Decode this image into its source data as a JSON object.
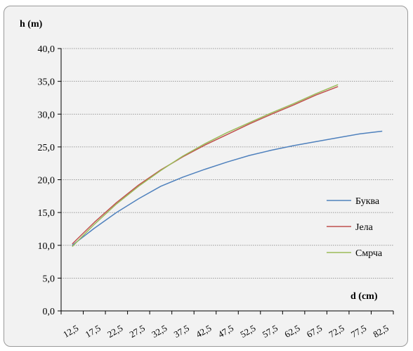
{
  "chart_data": {
    "type": "line",
    "ylabel": "h (m)",
    "xlabel": "d (cm)",
    "ylim": [
      0,
      40
    ],
    "yticks": [
      "0,0",
      "5,0",
      "10,0",
      "15,0",
      "20,0",
      "25,0",
      "30,0",
      "35,0",
      "40,0"
    ],
    "x_labels": [
      "12,5",
      "17,5",
      "22,5",
      "27,5",
      "32,5",
      "37,5",
      "42,5",
      "47,5",
      "52,5",
      "57,5",
      "62,5",
      "67,5",
      "72,5",
      "77,5",
      "82,5"
    ],
    "grid": true,
    "legend_position": "right",
    "series": [
      {
        "name": "Буква",
        "color": "#4f81bd",
        "values": [
          10.0,
          12.6,
          15.0,
          17.1,
          19.0,
          20.4,
          21.6,
          22.7,
          23.7,
          24.5,
          25.2,
          25.8,
          26.4,
          27.0,
          27.4
        ]
      },
      {
        "name": "Јела",
        "color": "#c0504d",
        "values": [
          10.2,
          13.5,
          16.5,
          19.2,
          21.5,
          23.5,
          25.3,
          26.9,
          28.5,
          30.0,
          31.4,
          32.9,
          34.2
        ]
      },
      {
        "name": "Смрча",
        "color": "#9bbb59",
        "values": [
          9.8,
          13.2,
          16.3,
          19.0,
          21.4,
          23.6,
          25.5,
          27.2,
          28.7,
          30.2,
          31.6,
          33.1,
          34.5
        ]
      }
    ]
  }
}
